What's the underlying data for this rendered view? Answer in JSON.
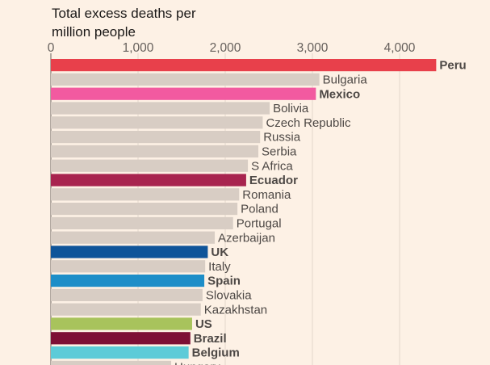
{
  "chart_data": {
    "type": "bar",
    "orientation": "horizontal",
    "title_lines": [
      "Total excess deaths per",
      "million people"
    ],
    "xlim": [
      0,
      4700
    ],
    "ticks": [
      0,
      1000,
      2000,
      3000,
      4000
    ],
    "tick_labels": [
      "0",
      "1,000",
      "2,000",
      "3,000",
      "4,000"
    ],
    "grid": true,
    "categories": [
      "Peru",
      "Bulgaria",
      "Mexico",
      "Bolivia",
      "Czech Republic",
      "Russia",
      "Serbia",
      "S Africa",
      "Ecuador",
      "Romania",
      "Poland",
      "Portugal",
      "Azerbaijan",
      "UK",
      "Italy",
      "Spain",
      "Slovakia",
      "Kazakhstan",
      "US",
      "Brazil",
      "Belgium",
      "Hungary"
    ],
    "values": [
      4420,
      3080,
      3040,
      2510,
      2430,
      2400,
      2380,
      2260,
      2240,
      2160,
      2140,
      2090,
      1880,
      1800,
      1770,
      1760,
      1740,
      1720,
      1620,
      1600,
      1580,
      1380
    ],
    "colors": [
      "#e8404b",
      "#d8cdc4",
      "#f25aa0",
      "#d8cdc4",
      "#d8cdc4",
      "#d8cdc4",
      "#d8cdc4",
      "#d8cdc4",
      "#a8244f",
      "#d8cdc4",
      "#d8cdc4",
      "#d8cdc4",
      "#d8cdc4",
      "#0f5499",
      "#d8cdc4",
      "#1d8ec8",
      "#d8cdc4",
      "#d8cdc4",
      "#a8c35c",
      "#7d0f35",
      "#5ccbd8",
      "#d8cdc4"
    ],
    "label_colors": [
      "#d43a44",
      "#4d4845",
      "#e54795",
      "#4d4845",
      "#4d4845",
      "#4d4845",
      "#4d4845",
      "#4d4845",
      "#a8244f",
      "#4d4845",
      "#4d4845",
      "#4d4845",
      "#4d4845",
      "#0f5499",
      "#4d4845",
      "#1d8ec8",
      "#4d4845",
      "#4d4845",
      "#a8bb3a",
      "#7d0f35",
      "#2ab4c4",
      "#4d4845"
    ],
    "highlighted": [
      "Peru",
      "Mexico",
      "Ecuador",
      "UK",
      "Spain",
      "US",
      "Brazil",
      "Belgium"
    ]
  }
}
